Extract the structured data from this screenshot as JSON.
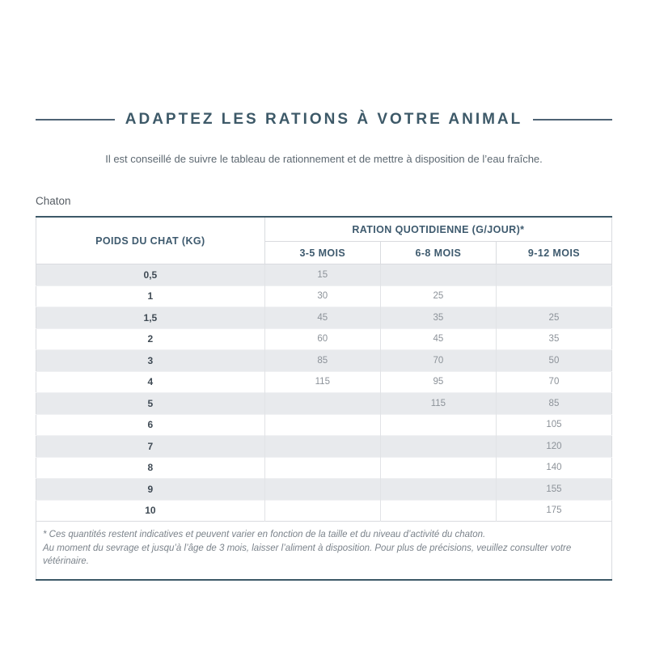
{
  "page": {
    "title": "ADAPTEZ LES RATIONS À VOTRE ANIMAL",
    "subtitle": "Il est conseillé de suivre le tableau de rationnement et de mettre à disposition de l’eau fraîche.",
    "section_label": "Chaton"
  },
  "colors": {
    "accent_slate": "#3d5968",
    "rule": "#4e6374",
    "row_alt_bg": "#e8eaed",
    "border_light": "#d9dbdf",
    "value_text": "#8c9299",
    "weight_text": "#3f4a54"
  },
  "table": {
    "weight_header": "POIDS DU CHAT (KG)",
    "ration_header": "RATION QUOTIDIENNE (G/JOUR)*",
    "age_headers": [
      "3-5 MOIS",
      "6-8 MOIS",
      "9-12 MOIS"
    ],
    "rows": [
      {
        "weight": "0,5",
        "values": [
          "15",
          "",
          ""
        ]
      },
      {
        "weight": "1",
        "values": [
          "30",
          "25",
          ""
        ]
      },
      {
        "weight": "1,5",
        "values": [
          "45",
          "35",
          "25"
        ]
      },
      {
        "weight": "2",
        "values": [
          "60",
          "45",
          "35"
        ]
      },
      {
        "weight": "3",
        "values": [
          "85",
          "70",
          "50"
        ]
      },
      {
        "weight": "4",
        "values": [
          "115",
          "95",
          "70"
        ]
      },
      {
        "weight": "5",
        "values": [
          "",
          "115",
          "85"
        ]
      },
      {
        "weight": "6",
        "values": [
          "",
          "",
          "105"
        ]
      },
      {
        "weight": "7",
        "values": [
          "",
          "",
          "120"
        ]
      },
      {
        "weight": "8",
        "values": [
          "",
          "",
          "140"
        ]
      },
      {
        "weight": "9",
        "values": [
          "",
          "",
          "155"
        ]
      },
      {
        "weight": "10",
        "values": [
          "",
          "",
          "175"
        ]
      }
    ],
    "footnotes": [
      "* Ces quantités restent indicatives et peuvent varier en fonction de la taille et du niveau d’activité du chaton.",
      "Au moment du sevrage et jusqu’à l’âge de 3 mois, laisser l’aliment à disposition. Pour plus de précisions, veuillez consulter votre vétérinaire."
    ]
  }
}
